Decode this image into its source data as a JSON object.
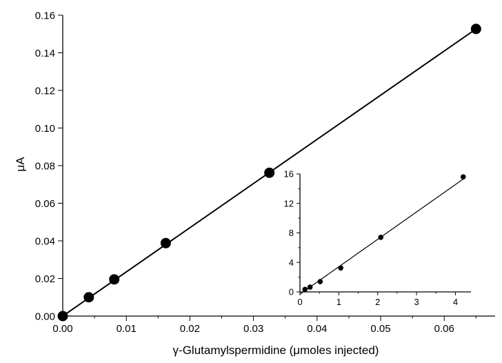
{
  "chart_data": [
    {
      "type": "scatter",
      "xlabel": "γ-Glutamylspermidine (μmoles injected)",
      "ylabel": "μA",
      "xlim": [
        0,
        0.068
      ],
      "ylim": [
        0,
        0.16
      ],
      "x_ticks": [
        "0.00",
        "0.01",
        "0.02",
        "0.03",
        "0.04",
        "0.05",
        "0.06"
      ],
      "y_ticks": [
        "0.00",
        "0.02",
        "0.04",
        "0.06",
        "0.08",
        "0.10",
        "0.12",
        "0.14",
        "0.16"
      ],
      "series": [
        {
          "x": [
            0.0,
            0.0041,
            0.0081,
            0.0162,
            0.0325,
            0.065
          ],
          "y": [
            0.0,
            0.01,
            0.0195,
            0.0388,
            0.0762,
            0.1527
          ]
        }
      ],
      "fit_line": {
        "x": [
          0.0,
          0.065
        ],
        "y": [
          0.0,
          0.1527
        ]
      },
      "grid": false
    },
    {
      "type": "scatter",
      "role": "inset",
      "xlim": [
        0,
        4.4
      ],
      "ylim": [
        0,
        16
      ],
      "x_ticks": [
        "0",
        "1",
        "2",
        "3",
        "4"
      ],
      "y_ticks": [
        "0",
        "4",
        "8",
        "12",
        "16"
      ],
      "series": [
        {
          "x": [
            0.13,
            0.26,
            0.52,
            1.05,
            2.08,
            4.2
          ],
          "y": [
            0.35,
            0.65,
            1.4,
            3.25,
            7.4,
            15.6
          ]
        }
      ],
      "fit_line": {
        "x": [
          0.0,
          4.2
        ],
        "y": [
          -0.3,
          15.3
        ]
      },
      "grid": false
    }
  ]
}
